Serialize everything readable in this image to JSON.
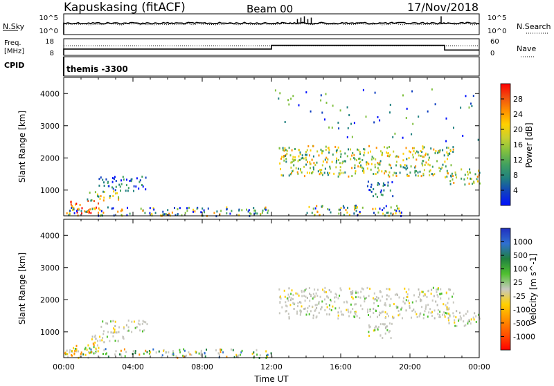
{
  "header": {
    "station": "Kapuskasing (fitACF)",
    "beam": "Beam 00",
    "date": "17/Nov/2018"
  },
  "nsky_panel": {
    "left_label": "N.Sky",
    "left_ticks": [
      "10^5",
      "10^0"
    ],
    "right_label": "N.Search",
    "right_ticks": [
      "10^5",
      "10^0"
    ],
    "spikes_hours": [
      13.5,
      13.7,
      13.9,
      14.1,
      14.3,
      21.8
    ]
  },
  "freq_panel": {
    "left_label_1": "Freq.",
    "left_label_2": "[MHz]",
    "left_ticks": [
      "18",
      "8"
    ],
    "right_label": "Nave",
    "right_ticks": [
      "60",
      "0"
    ],
    "cpid_label": "CPID",
    "cpid_value": "themis -3300",
    "freq_steps": [
      {
        "from": 0,
        "to": 12,
        "level": 0.38
      },
      {
        "from": 12,
        "to": 22,
        "level": 0.6
      },
      {
        "from": 22,
        "to": 24,
        "level": 0.32
      }
    ]
  },
  "chart_data": [
    {
      "type": "heatmap",
      "title": "",
      "xlabel": "",
      "ylabel": "Slant Range [km]",
      "xlim": [
        0,
        24
      ],
      "ylim": [
        200,
        4500
      ],
      "yticks": [
        "1000",
        "2000",
        "3000",
        "4000"
      ],
      "colorbar_label": "Power [dB]",
      "colorbar_ticks": [
        "28",
        "24",
        "20",
        "16",
        "12",
        "8",
        "4"
      ],
      "colorbar_colors": [
        "#ff0000",
        "#f05010",
        "#ff9000",
        "#ffd000",
        "#c8d030",
        "#80c040",
        "#40a060",
        "#208080",
        "#1040c0",
        "#0010ff"
      ],
      "echo_regions": [
        {
          "t0": 0.3,
          "t1": 2.0,
          "r0": 300,
          "r1": 700,
          "value": "high"
        },
        {
          "t0": 1.2,
          "t1": 3.2,
          "r0": 700,
          "r1": 1000,
          "value": "mid"
        },
        {
          "t0": 2.0,
          "t1": 4.8,
          "r0": 1000,
          "r1": 1450,
          "value": "low"
        },
        {
          "t0": 0.0,
          "t1": 12.0,
          "r0": 220,
          "r1": 500,
          "value": "mixed"
        },
        {
          "t0": 12.4,
          "t1": 22.5,
          "r0": 1450,
          "r1": 2400,
          "value": "mid"
        },
        {
          "t0": 22.0,
          "t1": 24.0,
          "r0": 1200,
          "r1": 1700,
          "value": "mid"
        },
        {
          "t0": 17.5,
          "t1": 19.0,
          "r0": 800,
          "r1": 1300,
          "value": "low"
        },
        {
          "t0": 14.0,
          "t1": 19.5,
          "r0": 220,
          "r1": 550,
          "value": "mixed"
        },
        {
          "t0": 12.0,
          "t1": 24.0,
          "r0": 2500,
          "r1": 4200,
          "value": "sparse"
        }
      ]
    },
    {
      "type": "heatmap",
      "title": "",
      "xlabel": "Time UT",
      "ylabel": "Slant Range [km]",
      "xlim": [
        0,
        24
      ],
      "ylim": [
        200,
        4500
      ],
      "xticks": [
        "00:00",
        "04:00",
        "08:00",
        "12:00",
        "16:00",
        "20:00",
        "00:00"
      ],
      "yticks": [
        "1000",
        "2000",
        "3000",
        "4000"
      ],
      "colorbar_label": "Velocity [m s^-1]",
      "colorbar_ticks": [
        "1000",
        "500",
        "100",
        "25",
        "-25",
        "-100",
        "-500",
        "-1000"
      ],
      "colorbar_colors": [
        "#2030c0",
        "#3070d0",
        "#208040",
        "#50c030",
        "#c8c8c0",
        "#ffd000",
        "#ff9000",
        "#ff5000",
        "#ff0000"
      ],
      "echo_regions": [
        {
          "t0": 0.0,
          "t1": 12.0,
          "r0": 220,
          "r1": 500,
          "value": "mixed"
        },
        {
          "t0": 0.3,
          "t1": 2.0,
          "r0": 300,
          "r1": 700,
          "value": "orange"
        },
        {
          "t0": 1.5,
          "t1": 3.5,
          "r0": 700,
          "r1": 1000,
          "value": "grey"
        },
        {
          "t0": 2.0,
          "t1": 4.8,
          "r0": 1000,
          "r1": 1400,
          "value": "grey"
        },
        {
          "t0": 12.4,
          "t1": 22.5,
          "r0": 1450,
          "r1": 2400,
          "value": "grey"
        },
        {
          "t0": 22.0,
          "t1": 24.0,
          "r0": 1200,
          "r1": 1700,
          "value": "grey"
        },
        {
          "t0": 17.5,
          "t1": 19.0,
          "r0": 800,
          "r1": 1300,
          "value": "grey"
        }
      ]
    }
  ]
}
